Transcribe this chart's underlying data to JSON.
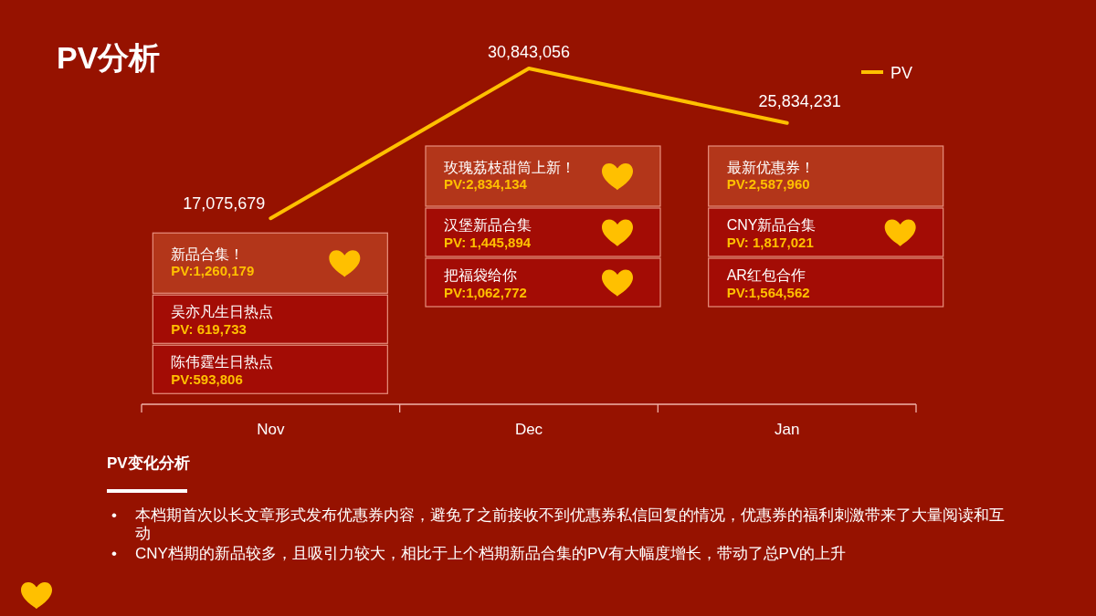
{
  "chart_data": {
    "type": "line",
    "title": "PV分析",
    "categories": [
      "Nov",
      "Dec",
      "Jan"
    ],
    "series": [
      {
        "name": "PV",
        "color": "#ffc000",
        "values": [
          17075679,
          30843056,
          25834231
        ],
        "value_labels": [
          "17,075,679",
          "30,843,056",
          "25,834,231"
        ]
      }
    ],
    "legend": "top right",
    "annotations": [
      "新品合集！\nPV:1,260,179",
      "吴亦凡生日热点\nPV: 619,733",
      "陈伟霆生日热点\nPV:593,806",
      "玫瑰荔枝甜筒上新！\nPV:2,834,134",
      "汉堡新品合集\nPV: 1,445,894",
      "把福袋给你\nPV:1,062,772",
      "最新优惠券！\nPV:2,587,960",
      "CNY新品合集\nPV: 1,817,021",
      "AR红包合作\nPV:1,564,562",
      "PV变化分析",
      "• 本档期首次以长文章形式发布优惠券内容，避免了之前接收不到优惠券私信回复的情况，优惠券的福利刺激带来了大量阅读和互动",
      "• CNY档期的新品较多，且吸引力较大，相比于上个档期新品合集的PV有大幅度增长，带动了总PV的上升"
    ]
  }
}
